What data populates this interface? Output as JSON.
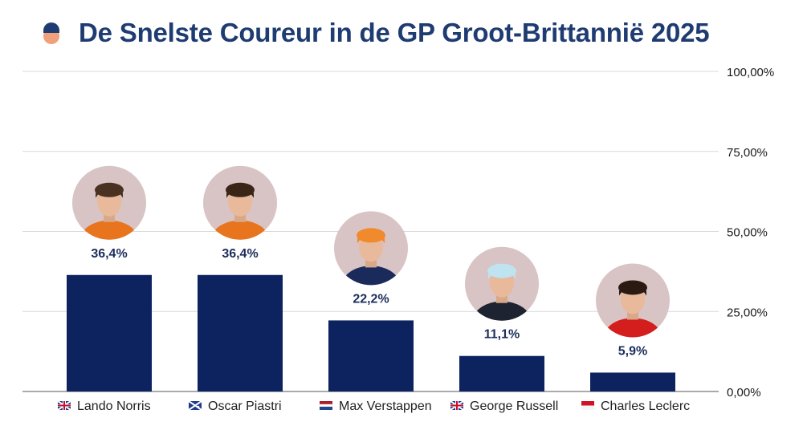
{
  "title": "De Snelste Coureur in de GP Groot-Brittannië 2025",
  "title_icon": "driver-avatar-icon",
  "colors": {
    "bar": "#0c2360",
    "grid": "#d9d9d9",
    "title": "#1f3c72",
    "data_label": "#1c2e5c",
    "avatar_bg": "#d8c4c4"
  },
  "chart_data": {
    "type": "bar",
    "title": "De Snelste Coureur in de GP Groot-Brittannië 2025",
    "categories": [
      "Lando Norris",
      "Oscar Piastri",
      "Max Verstappen",
      "George Russell",
      "Charles Leclerc"
    ],
    "values": [
      36.4,
      36.4,
      22.2,
      11.1,
      5.9
    ],
    "value_labels": [
      "36,4%",
      "36,4%",
      "22,2%",
      "11,1%",
      "5,9%"
    ],
    "flags": [
      "uk-flag-icon",
      "australia-flag-icon",
      "netherlands-flag-icon",
      "uk-flag-icon",
      "monaco-flag-icon"
    ],
    "avatars": [
      "lando-norris-photo",
      "oscar-piastri-photo",
      "max-verstappen-photo",
      "george-russell-photo",
      "charles-leclerc-photo"
    ],
    "ylim": [
      0,
      100
    ],
    "yticks": [
      0,
      25,
      50,
      75,
      100
    ],
    "ytick_labels": [
      "0,00%",
      "25,00%",
      "50,00%",
      "75,00%",
      "100,00%"
    ],
    "y_axis_side": "right",
    "grid": true,
    "legend": "none"
  }
}
